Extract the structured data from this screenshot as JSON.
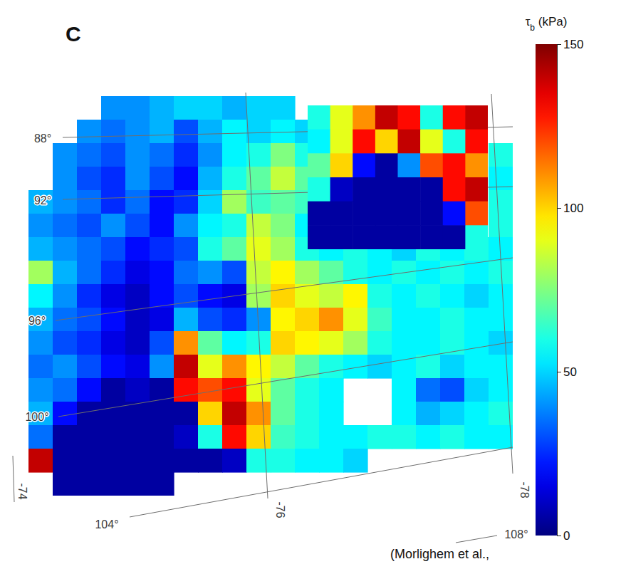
{
  "chart_data": {
    "type": "heatmap",
    "title": "C",
    "cells": [
      [
        null,
        null,
        null,
        40,
        40,
        45,
        50,
        50,
        45,
        50,
        50,
        null,
        null,
        null,
        null,
        null,
        null,
        null,
        null,
        null
      ],
      [
        null,
        null,
        40,
        35,
        40,
        45,
        30,
        45,
        55,
        50,
        55,
        50,
        null,
        null,
        null,
        null,
        null,
        null,
        null,
        null
      ],
      [
        null,
        40,
        35,
        30,
        40,
        35,
        25,
        40,
        55,
        60,
        75,
        60,
        null,
        null,
        null,
        null,
        null,
        null,
        null,
        60
      ],
      [
        null,
        40,
        30,
        25,
        40,
        30,
        20,
        45,
        60,
        70,
        85,
        70,
        null,
        null,
        null,
        null,
        null,
        null,
        null,
        55
      ],
      [
        45,
        40,
        35,
        25,
        35,
        20,
        25,
        50,
        80,
        65,
        70,
        65,
        null,
        null,
        null,
        null,
        null,
        null,
        null,
        60
      ],
      [
        40,
        35,
        30,
        40,
        30,
        20,
        40,
        55,
        60,
        85,
        75,
        55,
        null,
        null,
        null,
        null,
        null,
        null,
        null,
        60
      ],
      [
        45,
        40,
        35,
        30,
        20,
        25,
        30,
        60,
        70,
        90,
        80,
        60,
        55,
        60,
        55,
        50,
        60,
        55,
        60,
        55
      ],
      [
        80,
        45,
        35,
        25,
        15,
        20,
        35,
        40,
        30,
        85,
        95,
        80,
        70,
        60,
        55,
        60,
        55,
        60,
        55,
        60
      ],
      [
        55,
        40,
        25,
        15,
        10,
        20,
        30,
        20,
        15,
        80,
        100,
        90,
        85,
        95,
        60,
        55,
        60,
        55,
        50,
        55
      ],
      [
        45,
        35,
        30,
        20,
        10,
        15,
        45,
        30,
        25,
        40,
        95,
        100,
        110,
        90,
        65,
        55,
        55,
        60,
        55,
        55
      ],
      [
        40,
        30,
        25,
        15,
        10,
        30,
        110,
        70,
        55,
        60,
        100,
        95,
        90,
        80,
        60,
        55,
        55,
        60,
        55,
        50
      ],
      [
        35,
        40,
        30,
        20,
        15,
        40,
        140,
        90,
        110,
        95,
        85,
        70,
        60,
        55,
        50,
        55,
        60,
        50,
        55,
        55
      ],
      [
        40,
        35,
        20,
        5,
        10,
        5,
        130,
        120,
        130,
        90,
        70,
        60,
        55,
        null,
        null,
        55,
        35,
        30,
        50,
        55
      ],
      [
        45,
        20,
        5,
        5,
        5,
        5,
        5,
        100,
        140,
        110,
        70,
        60,
        55,
        null,
        null,
        55,
        45,
        50,
        55,
        60
      ],
      [
        35,
        5,
        5,
        5,
        5,
        5,
        10,
        60,
        130,
        100,
        65,
        60,
        55,
        55,
        60,
        60,
        55,
        60,
        55,
        55
      ],
      [
        140,
        5,
        5,
        5,
        5,
        5,
        5,
        5,
        10,
        60,
        60,
        55,
        55,
        50,
        null,
        null,
        null,
        null,
        null,
        null
      ],
      [
        null,
        5,
        5,
        5,
        5,
        5,
        null,
        null,
        null,
        null,
        null,
        null,
        null,
        null,
        null,
        null,
        null,
        null,
        null,
        null
      ]
    ],
    "inset_cells": [
      [
        60,
        90,
        110,
        140,
        130,
        60,
        130,
        140
      ],
      [
        55,
        90,
        130,
        100,
        140,
        90,
        60,
        130
      ],
      [
        70,
        100,
        20,
        5,
        40,
        120,
        130,
        110
      ],
      [
        60,
        10,
        5,
        5,
        5,
        5,
        130,
        140
      ],
      [
        5,
        5,
        5,
        5,
        5,
        5,
        20,
        120
      ],
      [
        5,
        5,
        5,
        5,
        5,
        5,
        5,
        60
      ]
    ],
    "color_range": [
      0,
      150
    ],
    "color_ticks": [
      0,
      50,
      100,
      150
    ],
    "colorbar_label": "τb (kPa)",
    "graticule": {
      "longitude": [
        {
          "value": 88,
          "label": "88°"
        },
        {
          "value": 92,
          "label": "92°"
        },
        {
          "value": 96,
          "label": "96°"
        },
        {
          "value": 100,
          "label": "100°"
        },
        {
          "value": 104,
          "label": "104°"
        },
        {
          "value": 108,
          "label": "108°"
        }
      ],
      "latitude": [
        {
          "value": -74,
          "label": "-74"
        },
        {
          "value": -76,
          "label": "-76"
        },
        {
          "value": -78,
          "label": "-78"
        }
      ]
    },
    "annotations": [
      "(Morlighem et al.,"
    ]
  }
}
